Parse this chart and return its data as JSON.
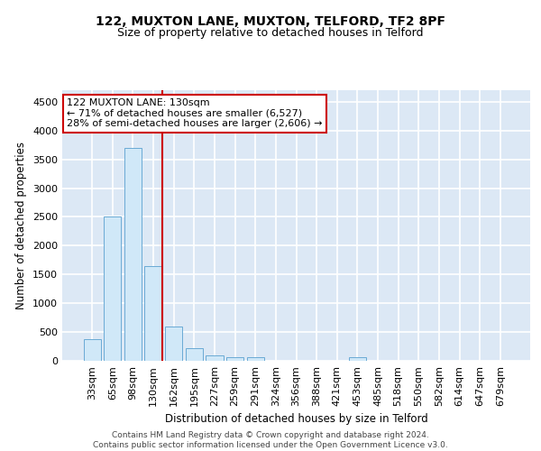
{
  "title1": "122, MUXTON LANE, MUXTON, TELFORD, TF2 8PF",
  "title2": "Size of property relative to detached houses in Telford",
  "xlabel": "Distribution of detached houses by size in Telford",
  "ylabel": "Number of detached properties",
  "categories": [
    "33sqm",
    "65sqm",
    "98sqm",
    "130sqm",
    "162sqm",
    "195sqm",
    "227sqm",
    "259sqm",
    "291sqm",
    "324sqm",
    "356sqm",
    "388sqm",
    "421sqm",
    "453sqm",
    "485sqm",
    "518sqm",
    "550sqm",
    "582sqm",
    "614sqm",
    "647sqm",
    "679sqm"
  ],
  "values": [
    375,
    2500,
    3700,
    1650,
    600,
    225,
    100,
    60,
    60,
    0,
    0,
    0,
    0,
    60,
    0,
    0,
    0,
    0,
    0,
    0,
    0
  ],
  "highlight_index": 3,
  "bar_color": "#d0e8f8",
  "bar_edge_color": "#6aaad4",
  "highlight_line_color": "#cc0000",
  "annotation_text": "122 MUXTON LANE: 130sqm\n← 71% of detached houses are smaller (6,527)\n28% of semi-detached houses are larger (2,606) →",
  "annotation_box_color": "#ffffff",
  "annotation_box_edge": "#cc0000",
  "ylim_min": 0,
  "ylim_max": 4700,
  "yticks": [
    0,
    500,
    1000,
    1500,
    2000,
    2500,
    3000,
    3500,
    4000,
    4500
  ],
  "background_color": "#dce8f5",
  "grid_color": "#ffffff",
  "footer": "Contains HM Land Registry data © Crown copyright and database right 2024.\nContains public sector information licensed under the Open Government Licence v3.0.",
  "title1_fontsize": 10,
  "title2_fontsize": 9,
  "xlabel_fontsize": 8.5,
  "ylabel_fontsize": 8.5,
  "tick_fontsize": 8,
  "footer_fontsize": 6.5,
  "ann_fontsize": 8
}
